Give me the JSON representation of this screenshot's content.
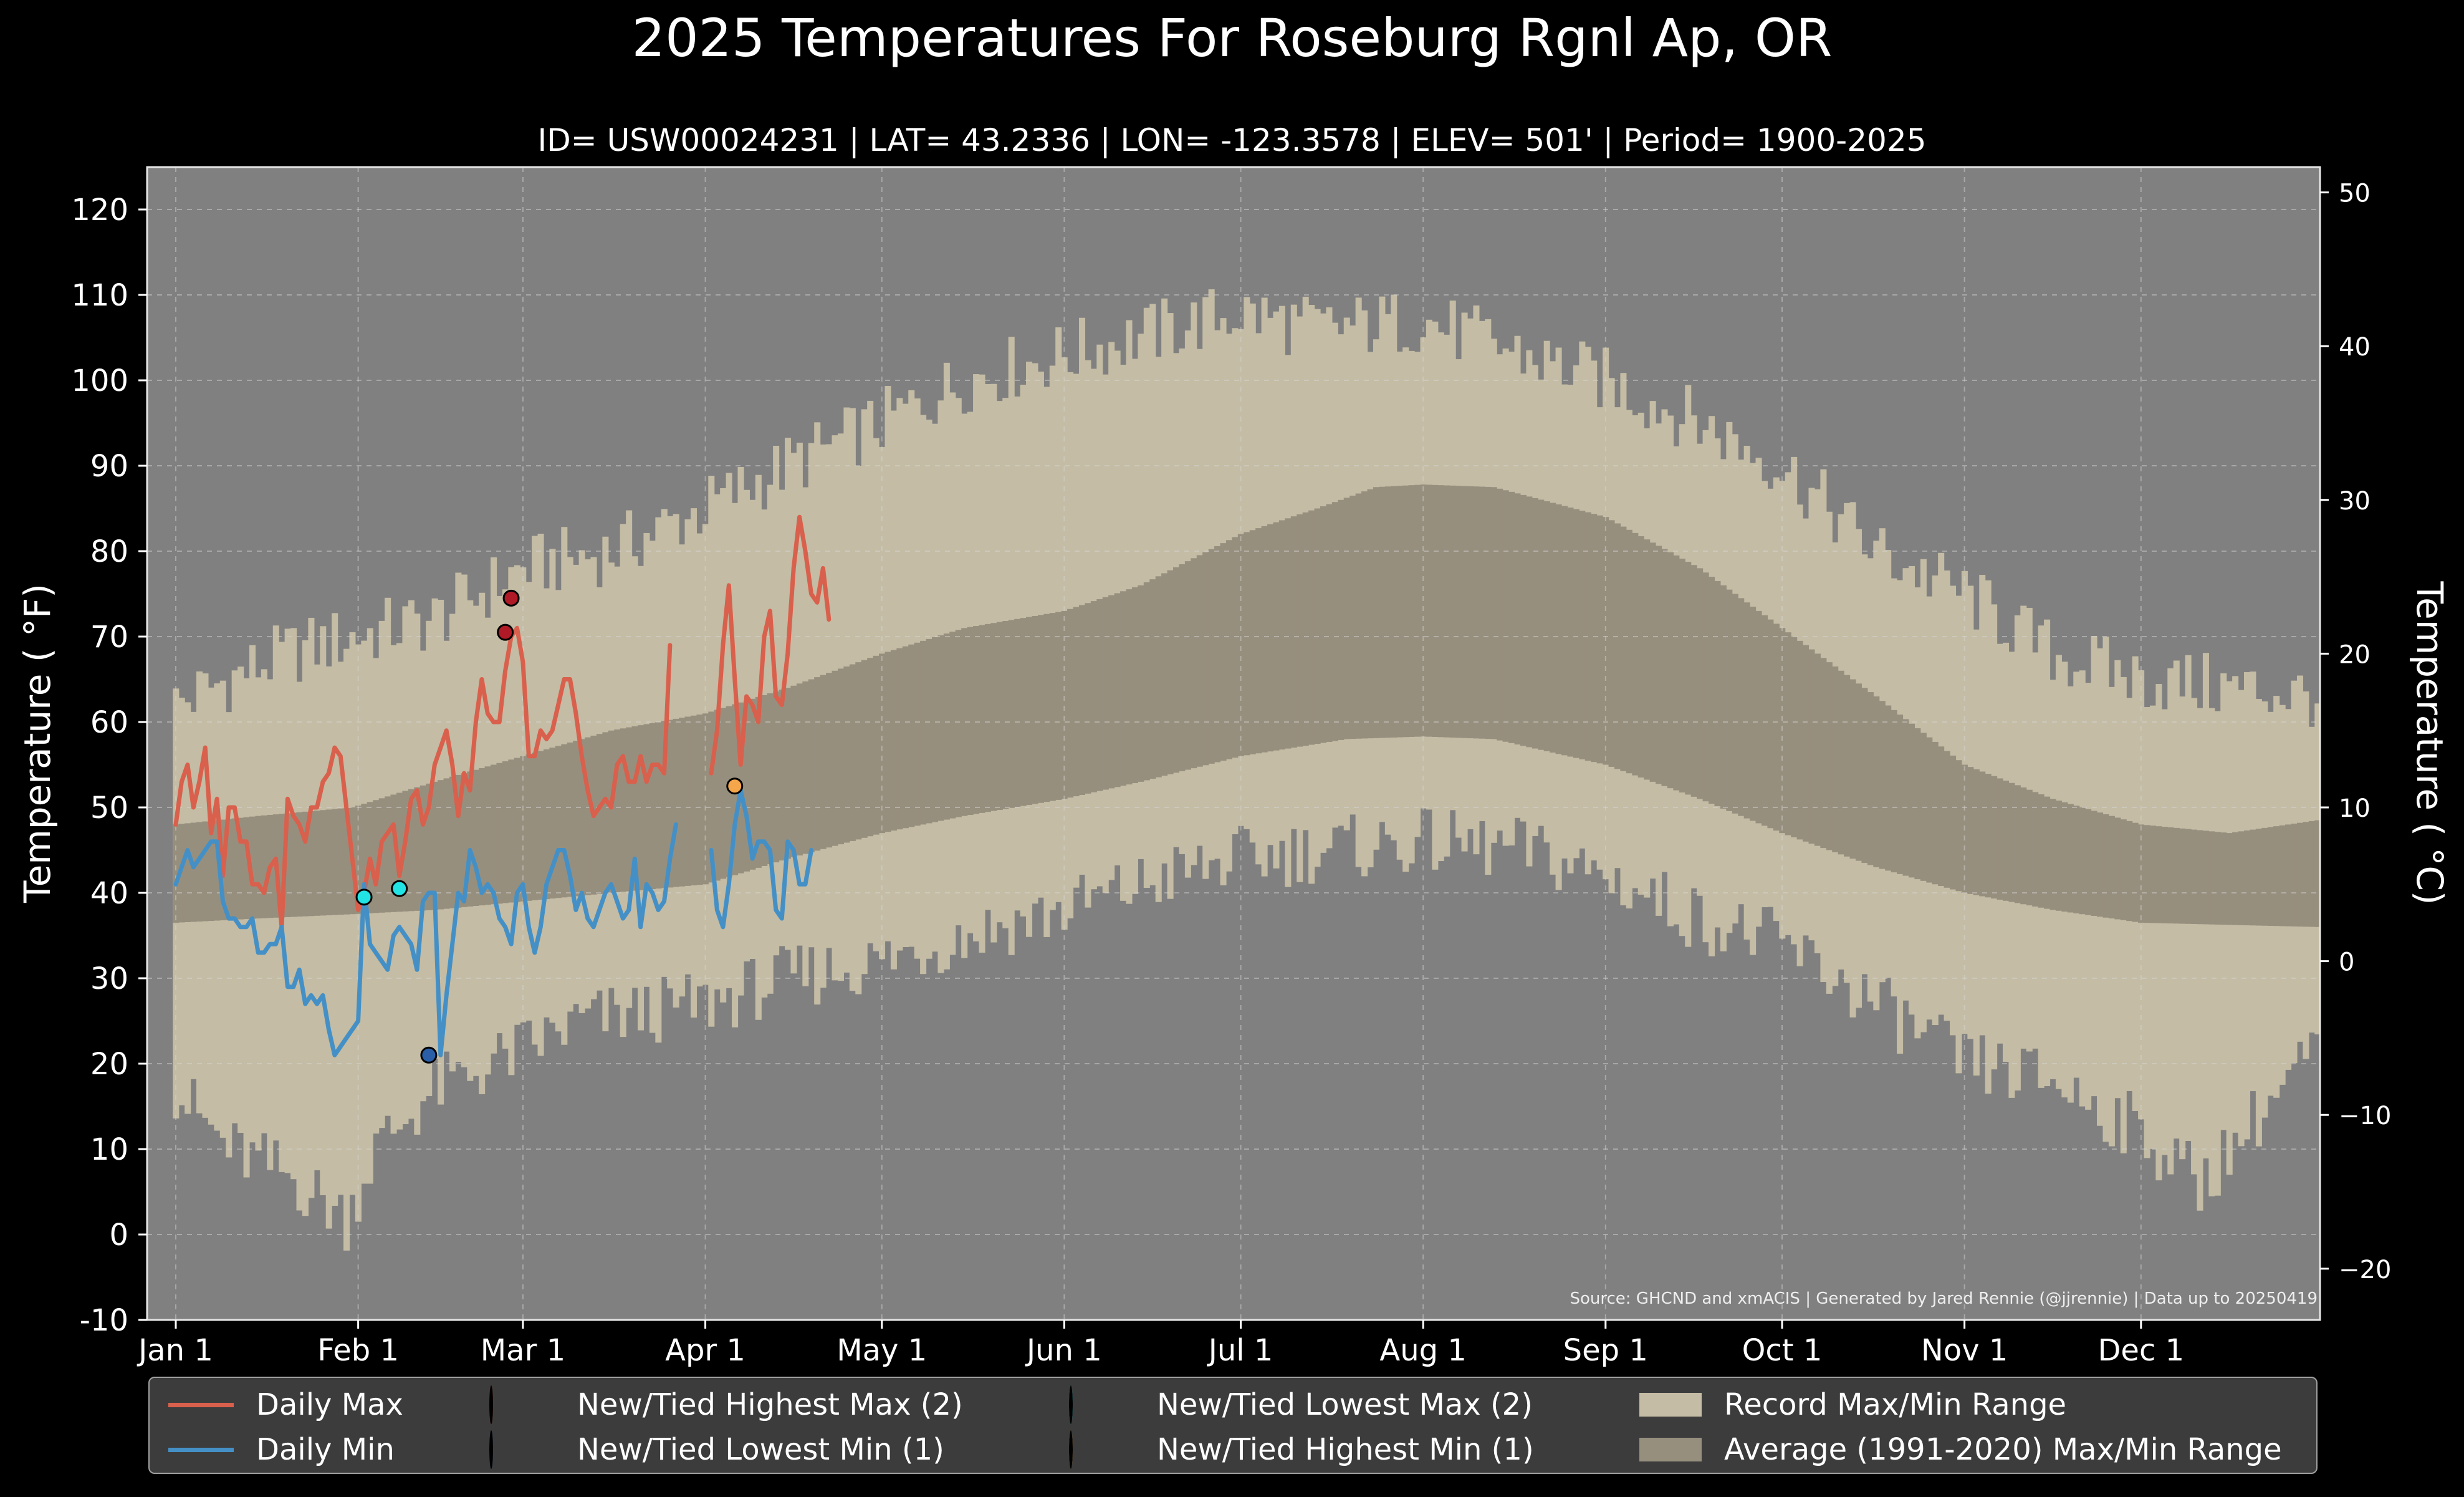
{
  "chart_data": {
    "type": "line",
    "title": "2025 Temperatures For Roseburg Rgnl Ap, OR",
    "subtitle": "ID= USW00024231 | LAT= 43.2336 | LON= -123.3578 | ELEV= 501' | Period= 1900-2025",
    "ylabel_left": "Temperature ( °F)",
    "ylabel_right": "Temperature ( °C)",
    "source": "Source: GHCND and xmACIS | Generated by Jared Rennie (@jjrennie) | Data up to 20250419",
    "ylim_f": [
      -10,
      125
    ],
    "yticks_f": [
      -10,
      0,
      10,
      20,
      30,
      40,
      50,
      60,
      70,
      80,
      90,
      100,
      110,
      120
    ],
    "yticks_c": [
      -20,
      -10,
      0,
      10,
      20,
      30,
      40,
      50
    ],
    "xlim_day": [
      1,
      365
    ],
    "month_ticks": [
      {
        "label": "Jan 1",
        "day": 1
      },
      {
        "label": "Feb 1",
        "day": 32
      },
      {
        "label": "Mar 1",
        "day": 60
      },
      {
        "label": "Apr 1",
        "day": 91
      },
      {
        "label": "May 1",
        "day": 121
      },
      {
        "label": "Jun 1",
        "day": 152
      },
      {
        "label": "Jul 1",
        "day": 182
      },
      {
        "label": "Aug 1",
        "day": 213
      },
      {
        "label": "Sep 1",
        "day": 244
      },
      {
        "label": "Oct 1",
        "day": 274
      },
      {
        "label": "Nov 1",
        "day": 305
      },
      {
        "label": "Dec 1",
        "day": 335
      }
    ],
    "grid": true,
    "legend_position": "bottom",
    "record_max_anchors": [
      [
        1,
        62
      ],
      [
        10,
        65
      ],
      [
        20,
        68
      ],
      [
        31,
        70
      ],
      [
        45,
        72
      ],
      [
        60,
        78
      ],
      [
        75,
        80
      ],
      [
        91,
        85
      ],
      [
        105,
        90
      ],
      [
        121,
        95
      ],
      [
        135,
        100
      ],
      [
        152,
        103
      ],
      [
        170,
        106
      ],
      [
        182,
        108
      ],
      [
        195,
        106
      ],
      [
        213,
        107
      ],
      [
        230,
        103
      ],
      [
        244,
        100
      ],
      [
        260,
        95
      ],
      [
        274,
        90
      ],
      [
        290,
        80
      ],
      [
        305,
        75
      ],
      [
        320,
        68
      ],
      [
        335,
        65
      ],
      [
        350,
        64
      ],
      [
        365,
        63
      ]
    ],
    "record_min_anchors": [
      [
        1,
        17
      ],
      [
        10,
        10
      ],
      [
        20,
        7
      ],
      [
        30,
        2
      ],
      [
        35,
        10
      ],
      [
        45,
        17
      ],
      [
        55,
        20
      ],
      [
        70,
        25
      ],
      [
        91,
        27
      ],
      [
        105,
        30
      ],
      [
        121,
        32
      ],
      [
        135,
        35
      ],
      [
        152,
        38
      ],
      [
        170,
        42
      ],
      [
        182,
        44
      ],
      [
        195,
        45
      ],
      [
        213,
        46
      ],
      [
        230,
        45
      ],
      [
        244,
        42
      ],
      [
        260,
        37
      ],
      [
        274,
        34
      ],
      [
        290,
        27
      ],
      [
        305,
        20
      ],
      [
        320,
        18
      ],
      [
        335,
        12
      ],
      [
        345,
        6
      ],
      [
        355,
        14
      ],
      [
        365,
        22
      ]
    ],
    "average_max_anchors": [
      [
        1,
        48
      ],
      [
        15,
        49
      ],
      [
        31,
        50
      ],
      [
        45,
        53
      ],
      [
        60,
        56
      ],
      [
        75,
        59
      ],
      [
        91,
        61
      ],
      [
        105,
        64
      ],
      [
        121,
        68
      ],
      [
        135,
        71
      ],
      [
        152,
        73
      ],
      [
        165,
        76
      ],
      [
        182,
        82
      ],
      [
        195,
        85
      ],
      [
        205,
        87.5
      ],
      [
        213,
        87.8
      ],
      [
        225,
        87.5
      ],
      [
        244,
        84
      ],
      [
        260,
        78
      ],
      [
        274,
        71
      ],
      [
        290,
        63
      ],
      [
        305,
        55
      ],
      [
        320,
        51
      ],
      [
        335,
        48
      ],
      [
        350,
        47
      ],
      [
        365,
        48.5
      ]
    ],
    "average_min_anchors": [
      [
        1,
        36.5
      ],
      [
        15,
        37
      ],
      [
        31,
        37.5
      ],
      [
        45,
        38
      ],
      [
        60,
        39
      ],
      [
        75,
        40
      ],
      [
        91,
        41
      ],
      [
        105,
        44
      ],
      [
        121,
        47
      ],
      [
        135,
        49
      ],
      [
        152,
        51
      ],
      [
        165,
        53
      ],
      [
        182,
        56
      ],
      [
        200,
        58
      ],
      [
        213,
        58.3
      ],
      [
        225,
        58
      ],
      [
        244,
        55
      ],
      [
        260,
        51
      ],
      [
        274,
        47
      ],
      [
        290,
        43
      ],
      [
        305,
        40
      ],
      [
        320,
        38
      ],
      [
        335,
        36.5
      ],
      [
        365,
        36
      ]
    ],
    "series": [
      {
        "name": "Daily Max",
        "color": "#d9604c",
        "start_day": 1,
        "values": [
          48,
          53,
          55,
          50,
          53,
          57,
          47,
          51,
          42,
          50,
          50,
          46,
          46,
          41,
          41,
          40,
          43,
          44,
          36,
          51,
          49,
          48,
          46,
          50,
          50,
          53,
          54,
          57,
          56,
          50,
          44,
          38,
          40,
          44,
          41,
          46,
          47,
          48,
          42,
          46,
          51,
          52,
          48,
          50,
          55,
          57,
          59,
          55,
          49,
          54,
          52,
          60,
          65,
          61,
          60,
          60,
          66,
          70,
          71,
          67,
          56,
          56,
          59,
          58,
          59,
          62,
          65,
          65,
          61,
          56,
          52,
          49,
          50,
          51,
          50,
          55,
          56,
          53,
          53,
          56,
          53,
          55,
          55,
          54,
          69,
          null,
          null,
          null,
          null,
          null,
          null,
          54,
          59,
          69,
          76,
          65,
          55,
          63,
          62,
          60,
          70,
          73,
          63,
          62,
          68,
          78,
          84,
          80,
          75,
          74,
          78,
          72
        ]
      },
      {
        "name": "Daily Min",
        "color": "#4490c6",
        "start_day": 1,
        "values": [
          41,
          43,
          45,
          43,
          44,
          45,
          46,
          46,
          39,
          37,
          37,
          36,
          36,
          37,
          33,
          33,
          34,
          34,
          36,
          29,
          29,
          31,
          27,
          28,
          27,
          28,
          24,
          21,
          22,
          23,
          24,
          25,
          41,
          34,
          33,
          32,
          31,
          35,
          36,
          35,
          34,
          31,
          39,
          40,
          40,
          21,
          28,
          34,
          40,
          39,
          45,
          43,
          40,
          41,
          40,
          37,
          36,
          34,
          40,
          41,
          36,
          33,
          36,
          41,
          43,
          45,
          45,
          42,
          38,
          40,
          37,
          36,
          38,
          40,
          41,
          39,
          37,
          38,
          44,
          36,
          41,
          40,
          38,
          39,
          44,
          48,
          null,
          null,
          null,
          null,
          null,
          45,
          38,
          36,
          41,
          48,
          52,
          49,
          44,
          46,
          46,
          45,
          38,
          37,
          46,
          45,
          41,
          41,
          45
        ]
      }
    ],
    "markers": [
      {
        "name": "New/Tied Highest Max (2)",
        "color": "#b01a26",
        "points": [
          [
            57,
            70.5
          ],
          [
            58,
            74.5
          ]
        ]
      },
      {
        "name": "New/Tied Lowest Min (1)",
        "color": "#2a5fa8",
        "points": [
          [
            44,
            21
          ]
        ]
      },
      {
        "name": "New/Tied Lowest Max (2)",
        "color": "#22e4e4",
        "points": [
          [
            33,
            39.5
          ],
          [
            39,
            40.5
          ]
        ]
      },
      {
        "name": "New/Tied Highest Min (1)",
        "color": "#f5a54a",
        "points": [
          [
            96,
            52.5
          ]
        ]
      }
    ],
    "bands": [
      {
        "name": "Record Max/Min Range",
        "color": "#c4bca4"
      },
      {
        "name": "Average (1991-2020) Max/Min Range",
        "color": "#978f7e"
      }
    ]
  },
  "legend": [
    {
      "label": "Daily Max",
      "kind": "line",
      "color": "#d9604c"
    },
    {
      "label": "Daily Min",
      "kind": "line",
      "color": "#4490c6"
    },
    {
      "label": "New/Tied Highest Max (2)",
      "kind": "dot",
      "color": "#b01a26"
    },
    {
      "label": "New/Tied Lowest Min (1)",
      "kind": "dot",
      "color": "#2a5fa8"
    },
    {
      "label": "New/Tied Lowest Max (2)",
      "kind": "dot",
      "color": "#22e4e4"
    },
    {
      "label": "New/Tied Highest Min (1)",
      "kind": "dot",
      "color": "#f5a54a"
    },
    {
      "label": "Record Max/Min Range",
      "kind": "patch",
      "color": "#c4bca4"
    },
    {
      "label": "Average (1991-2020) Max/Min Range",
      "kind": "patch",
      "color": "#978f7e"
    }
  ]
}
